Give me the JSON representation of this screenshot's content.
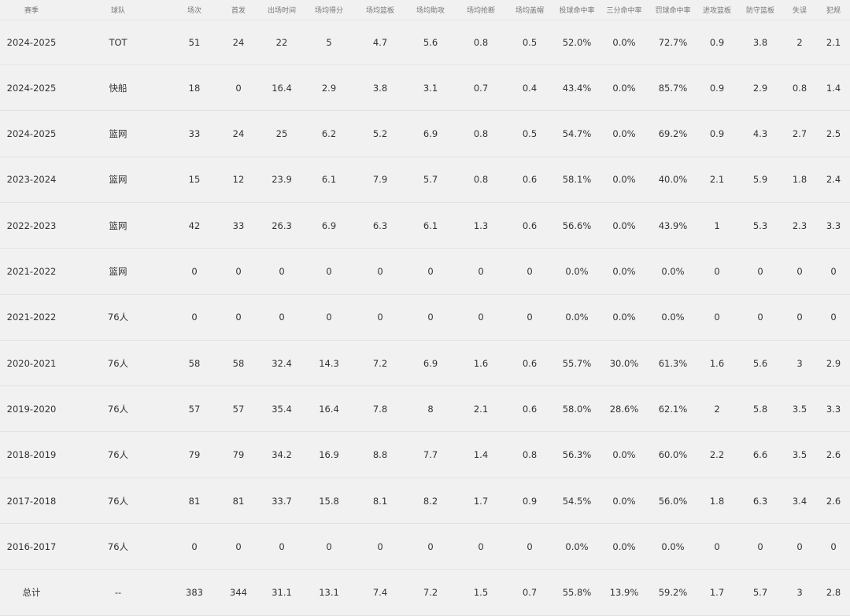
{
  "headers": [
    "赛季",
    "球队",
    "场次",
    "首发",
    "出场时间",
    "场均得分",
    "场均篮板",
    "场均助攻",
    "场均抢断",
    "场均盖帽",
    "投球命中率",
    "三分命中率",
    "罚球命中率",
    "进攻篮板",
    "防守篮板",
    "失误",
    "犯规"
  ],
  "rows": [
    [
      "2024-2025",
      "TOT",
      "51",
      "24",
      "22",
      "5",
      "4.7",
      "5.6",
      "0.8",
      "0.5",
      "52.0%",
      "0.0%",
      "72.7%",
      "0.9",
      "3.8",
      "2",
      "2.1"
    ],
    [
      "2024-2025",
      "快船",
      "18",
      "0",
      "16.4",
      "2.9",
      "3.8",
      "3.1",
      "0.7",
      "0.4",
      "43.4%",
      "0.0%",
      "85.7%",
      "0.9",
      "2.9",
      "0.8",
      "1.4"
    ],
    [
      "2024-2025",
      "篮网",
      "33",
      "24",
      "25",
      "6.2",
      "5.2",
      "6.9",
      "0.8",
      "0.5",
      "54.7%",
      "0.0%",
      "69.2%",
      "0.9",
      "4.3",
      "2.7",
      "2.5"
    ],
    [
      "2023-2024",
      "篮网",
      "15",
      "12",
      "23.9",
      "6.1",
      "7.9",
      "5.7",
      "0.8",
      "0.6",
      "58.1%",
      "0.0%",
      "40.0%",
      "2.1",
      "5.9",
      "1.8",
      "2.4"
    ],
    [
      "2022-2023",
      "篮网",
      "42",
      "33",
      "26.3",
      "6.9",
      "6.3",
      "6.1",
      "1.3",
      "0.6",
      "56.6%",
      "0.0%",
      "43.9%",
      "1",
      "5.3",
      "2.3",
      "3.3"
    ],
    [
      "2021-2022",
      "篮网",
      "0",
      "0",
      "0",
      "0",
      "0",
      "0",
      "0",
      "0",
      "0.0%",
      "0.0%",
      "0.0%",
      "0",
      "0",
      "0",
      "0"
    ],
    [
      "2021-2022",
      "76人",
      "0",
      "0",
      "0",
      "0",
      "0",
      "0",
      "0",
      "0",
      "0.0%",
      "0.0%",
      "0.0%",
      "0",
      "0",
      "0",
      "0"
    ],
    [
      "2020-2021",
      "76人",
      "58",
      "58",
      "32.4",
      "14.3",
      "7.2",
      "6.9",
      "1.6",
      "0.6",
      "55.7%",
      "30.0%",
      "61.3%",
      "1.6",
      "5.6",
      "3",
      "2.9"
    ],
    [
      "2019-2020",
      "76人",
      "57",
      "57",
      "35.4",
      "16.4",
      "7.8",
      "8",
      "2.1",
      "0.6",
      "58.0%",
      "28.6%",
      "62.1%",
      "2",
      "5.8",
      "3.5",
      "3.3"
    ],
    [
      "2018-2019",
      "76人",
      "79",
      "79",
      "34.2",
      "16.9",
      "8.8",
      "7.7",
      "1.4",
      "0.8",
      "56.3%",
      "0.0%",
      "60.0%",
      "2.2",
      "6.6",
      "3.5",
      "2.6"
    ],
    [
      "2017-2018",
      "76人",
      "81",
      "81",
      "33.7",
      "15.8",
      "8.1",
      "8.2",
      "1.7",
      "0.9",
      "54.5%",
      "0.0%",
      "56.0%",
      "1.8",
      "6.3",
      "3.4",
      "2.6"
    ],
    [
      "2016-2017",
      "76人",
      "0",
      "0",
      "0",
      "0",
      "0",
      "0",
      "0",
      "0",
      "0.0%",
      "0.0%",
      "0.0%",
      "0",
      "0",
      "0",
      "0"
    ],
    [
      "总计",
      "--",
      "383",
      "344",
      "31.1",
      "13.1",
      "7.4",
      "7.2",
      "1.5",
      "0.7",
      "55.8%",
      "13.9%",
      "59.2%",
      "1.7",
      "5.7",
      "3",
      "2.8"
    ]
  ]
}
